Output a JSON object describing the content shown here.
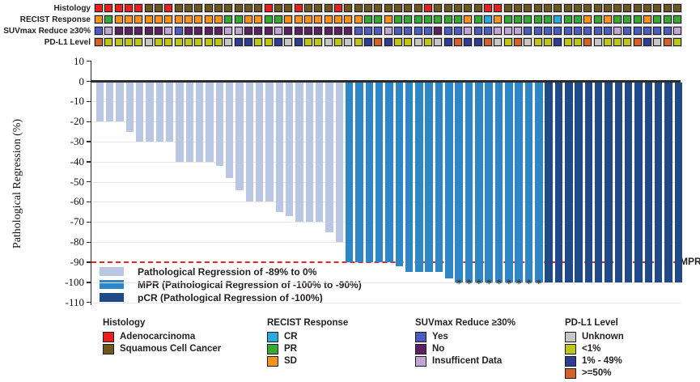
{
  "tracks": {
    "rows": [
      {
        "label": "Histology",
        "cells": [
          "A",
          "A",
          "A",
          "A",
          "A",
          "S",
          "S",
          "A",
          "S",
          "S",
          "S",
          "S",
          "S",
          "S",
          "S",
          "S",
          "S",
          "A",
          "S",
          "S",
          "A",
          "S",
          "S",
          "S",
          "A",
          "S",
          "S",
          "S",
          "S",
          "S",
          "S",
          "S",
          "S",
          "A",
          "S",
          "S",
          "S",
          "S",
          "S",
          "A",
          "A",
          "S",
          "S",
          "S",
          "S",
          "S",
          "S",
          "S",
          "S",
          "S",
          "S",
          "S",
          "S",
          "S",
          "S",
          "S",
          "S",
          "S",
          "S"
        ]
      },
      {
        "label": "RECIST Response",
        "cells": [
          "O",
          "P",
          "O",
          "O",
          "O",
          "O",
          "O",
          "O",
          "O",
          "O",
          "O",
          "O",
          "O",
          "P",
          "P",
          "O",
          "O",
          "P",
          "P",
          "O",
          "O",
          "O",
          "O",
          "O",
          "O",
          "O",
          "O",
          "P",
          "P",
          "O",
          "P",
          "P",
          "P",
          "P",
          "P",
          "P",
          "P",
          "O",
          "P",
          "C",
          "O",
          "P",
          "P",
          "P",
          "P",
          "P",
          "C",
          "P",
          "P",
          "O",
          "P",
          "O",
          "P",
          "P",
          "P",
          "O",
          "P",
          "P",
          "P"
        ]
      },
      {
        "label": "SUVmax Reduce ≥30%",
        "cells": [
          "Y",
          "I",
          "N",
          "N",
          "N",
          "N",
          "N",
          "I",
          "Y",
          "N",
          "N",
          "N",
          "N",
          "I",
          "I",
          "N",
          "N",
          "N",
          "I",
          "N",
          "N",
          "N",
          "N",
          "N",
          "N",
          "N",
          "Y",
          "Y",
          "Y",
          "I",
          "Y",
          "Y",
          "Y",
          "Y",
          "N",
          "Y",
          "Y",
          "I",
          "Y",
          "Y",
          "I",
          "I",
          "I",
          "Y",
          "Y",
          "Y",
          "Y",
          "Y",
          "Y",
          "Y",
          "Y",
          "Y",
          "I",
          "Y",
          "Y",
          "Y",
          "Y",
          "Y",
          "I"
        ]
      },
      {
        "label": "PD-L1 Level",
        "cells": [
          "H",
          "L",
          "L",
          "L",
          "L",
          "U",
          "L",
          "L",
          "L",
          "L",
          "L",
          "L",
          "L",
          "U",
          "M",
          "M",
          "L",
          "L",
          "M",
          "U",
          "M",
          "L",
          "L",
          "U",
          "L",
          "U",
          "L",
          "M",
          "H",
          "M",
          "L",
          "L",
          "U",
          "L",
          "U",
          "M",
          "H",
          "M",
          "M",
          "H",
          "U",
          "L",
          "H",
          "U",
          "L",
          "L",
          "M",
          "L",
          "L",
          "H",
          "U",
          "L",
          "L",
          "L",
          "H",
          "M",
          "U",
          "H",
          "L"
        ]
      }
    ],
    "palette": {
      "A": "#e8211d",
      "S": "#6e571f",
      "O": "#f6921e",
      "P": "#39a935",
      "C": "#29abe2",
      "Y": "#4a5cbe",
      "N": "#5c2060",
      "I": "#c2a5d7",
      "U": "#c6c6c6",
      "L": "#bfc617",
      "M": "#2e3d92",
      "H": "#d2622b"
    }
  },
  "chart_data": {
    "type": "bar",
    "title": "",
    "xlabel": "",
    "ylabel": "Pathological Regression (%)",
    "ylim": [
      -110,
      10
    ],
    "yticks": [
      10,
      0,
      -10,
      -20,
      -30,
      -40,
      -50,
      -60,
      -70,
      -80,
      -90,
      -100,
      -110
    ],
    "grid": true,
    "values": [
      -20,
      -20,
      -20,
      -25,
      -30,
      -30,
      -30,
      -30,
      -40,
      -40,
      -40,
      -40,
      -42,
      -48,
      -54,
      -60,
      -60,
      -60,
      -65,
      -67,
      -70,
      -70,
      -70,
      -75,
      -80,
      -90,
      -90,
      -90,
      -90,
      -90,
      -92,
      -95,
      -95,
      -95,
      -95,
      -98,
      -100,
      -100,
      -100,
      -100,
      -100,
      -100,
      -100,
      -100,
      -100,
      -100,
      -100,
      -100,
      -100,
      -100,
      -100,
      -100,
      -100,
      -100,
      -100,
      -100,
      -100,
      -100,
      -100
    ],
    "groups": [
      "light",
      "light",
      "light",
      "light",
      "light",
      "light",
      "light",
      "light",
      "light",
      "light",
      "light",
      "light",
      "light",
      "light",
      "light",
      "light",
      "light",
      "light",
      "light",
      "light",
      "light",
      "light",
      "light",
      "light",
      "light",
      "mpr",
      "mpr",
      "mpr",
      "mpr",
      "mpr",
      "mpr",
      "mpr",
      "mpr",
      "mpr",
      "mpr",
      "mpr",
      "mpr",
      "mpr",
      "mpr",
      "mpr",
      "mpr",
      "mpr",
      "mpr",
      "mpr",
      "mpr",
      "pcr",
      "pcr",
      "pcr",
      "pcr",
      "pcr",
      "pcr",
      "pcr",
      "pcr",
      "pcr",
      "pcr",
      "pcr",
      "pcr",
      "pcr",
      "pcr"
    ],
    "starred_bars": [
      37,
      38,
      39,
      40,
      41,
      42,
      43,
      44,
      45
    ],
    "star_symbol": "*",
    "series_colors": {
      "light": "#b9c7e3",
      "mpr": "#2f86c6",
      "pcr": "#1f4a87"
    },
    "mpr_line": {
      "y": -90,
      "label": "MPR",
      "color": "#ee2024"
    }
  },
  "plot_legend": {
    "items": [
      {
        "key": "light",
        "label": "Pathological Regression of -89% to 0%"
      },
      {
        "key": "mpr",
        "label": "MPR (Pathological Regression of -100% to -90%)"
      },
      {
        "key": "pcr",
        "label": "pCR (Pathological Regression of -100%)"
      }
    ]
  },
  "bottom_legends": [
    {
      "title": "Histology",
      "items": [
        {
          "color": "#e8211d",
          "label": "Adenocarcinoma"
        },
        {
          "color": "#6e571f",
          "label": "Squamous Cell Cancer"
        }
      ]
    },
    {
      "title": "RECIST Response",
      "items": [
        {
          "color": "#29abe2",
          "label": "CR"
        },
        {
          "color": "#39a935",
          "label": "PR"
        },
        {
          "color": "#f6921e",
          "label": "SD"
        }
      ]
    },
    {
      "title": "SUVmax Reduce ≥30%",
      "items": [
        {
          "color": "#4a5cbe",
          "label": "Yes"
        },
        {
          "color": "#5c2060",
          "label": "No"
        },
        {
          "color": "#c2a5d7",
          "label": "Insufficent Data"
        }
      ]
    },
    {
      "title": "PD-L1 Level",
      "items": [
        {
          "color": "#c6c6c6",
          "label": "Unknown"
        },
        {
          "color": "#bfc617",
          "label": "<1%"
        },
        {
          "color": "#2e3d92",
          "label": "1% - 49%"
        },
        {
          "color": "#d2622b",
          "label": ">=50%"
        }
      ]
    }
  ]
}
